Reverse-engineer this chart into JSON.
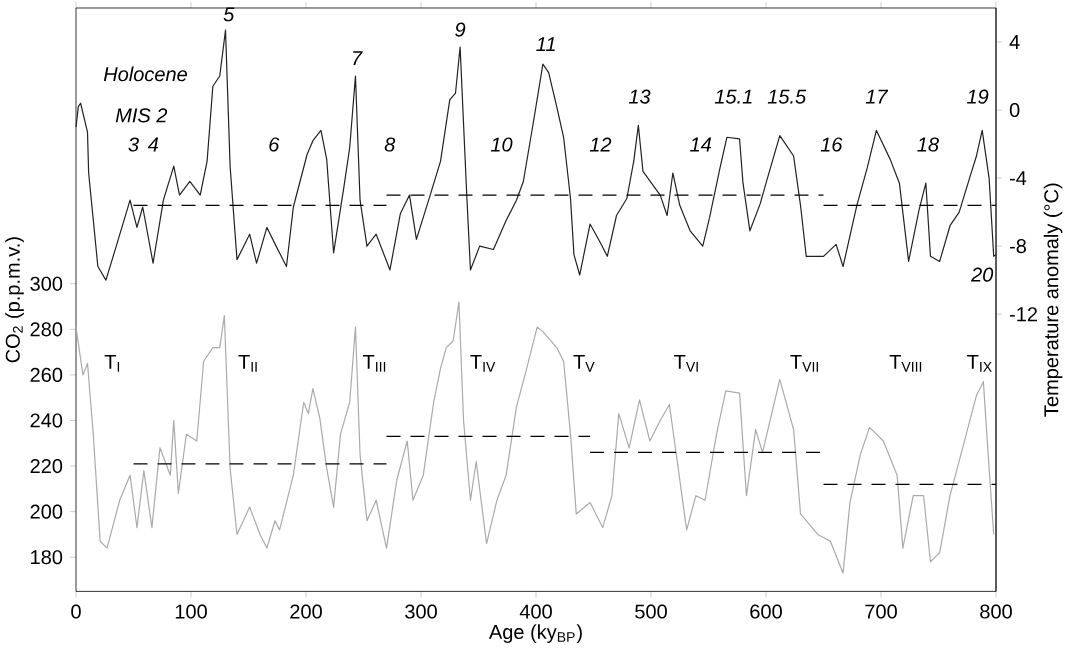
{
  "chart_data": {
    "type": "line",
    "xlabel": "Age (ky$_{BP}$)",
    "ylabel": "CO$_{2}$ (p.p.m.v.)",
    "y2label": "Temperature anomaly (°C)",
    "xlim": [
      0,
      800
    ],
    "xticks": [
      0,
      100,
      200,
      300,
      400,
      500,
      600,
      700,
      800
    ],
    "ylim": [
      165,
      421
    ],
    "yticks": [
      180,
      200,
      220,
      240,
      260,
      280,
      300
    ],
    "y2lim": [
      -28.3,
      6
    ],
    "y2ticks": [
      -12,
      -8,
      -4,
      0,
      4
    ],
    "series": [
      {
        "axis": "y2",
        "color": "#222222",
        "x": [
          0,
          2,
          4,
          10,
          11,
          19,
          26,
          35,
          47,
          53,
          58,
          67,
          76,
          85,
          90,
          99,
          108,
          114,
          119,
          125,
          130,
          134,
          140,
          151,
          157,
          166,
          174,
          183,
          189,
          201,
          206,
          213,
          218,
          224,
          233,
          238,
          243,
          247,
          253,
          261,
          273,
          282,
          290,
          296,
          308,
          317,
          325,
          330,
          334,
          340,
          343,
          351,
          363,
          374,
          383,
          389,
          398,
          406,
          411,
          418,
          424,
          430,
          433,
          438,
          447,
          456,
          462,
          470,
          479,
          485,
          489,
          493,
          508,
          514,
          519,
          525,
          534,
          545,
          551,
          560,
          566,
          577,
          580,
          586,
          595,
          600,
          612,
          624,
          630,
          635,
          650,
          661,
          667,
          679,
          688,
          696,
          708,
          716,
          724,
          733,
          739,
          743,
          751,
          760,
          768,
          777,
          783,
          788,
          794,
          798,
          800
        ],
        "values": [
          -1,
          0.2,
          0.4,
          -1.3,
          -3.7,
          -9.2,
          -10,
          -8,
          -5.3,
          -6.9,
          -5.7,
          -9,
          -5.3,
          -3.3,
          -5,
          -4.2,
          -5,
          -3,
          1.4,
          2,
          4.7,
          -3.3,
          -8.8,
          -7.3,
          -9,
          -6.9,
          -8,
          -9.2,
          -5.7,
          -2.6,
          -1.8,
          -1.2,
          -2.9,
          -8.4,
          -4.5,
          -2.2,
          2,
          -5.3,
          -8,
          -7.3,
          -9.4,
          -6.1,
          -5,
          -7.6,
          -5,
          -3,
          0.6,
          1,
          3.7,
          -5.3,
          -9.4,
          -8,
          -8.2,
          -6.5,
          -5.3,
          -4.2,
          -0.6,
          2.7,
          2.2,
          0.2,
          -1.6,
          -5.2,
          -8.5,
          -9.7,
          -6.7,
          -7.8,
          -8.6,
          -6.2,
          -5.2,
          -3,
          -0.9,
          -3.6,
          -5,
          -6.2,
          -3.7,
          -5.6,
          -7.1,
          -8,
          -6.3,
          -3.4,
          -1.6,
          -1.7,
          -4.3,
          -7.1,
          -5.5,
          -4.3,
          -1.5,
          -2.7,
          -5.6,
          -8.6,
          -8.6,
          -7.9,
          -9.2,
          -5.6,
          -3.4,
          -1.2,
          -2.9,
          -4.3,
          -8.9,
          -5.9,
          -4.3,
          -8.6,
          -8.9,
          -6.8,
          -6,
          -4,
          -2.7,
          -1.2,
          -4,
          -8.6,
          -8.5
        ]
      },
      {
        "color": "#aaaaaa",
        "x": [
          0,
          6,
          10,
          15,
          21,
          27,
          38,
          47,
          53,
          59,
          66,
          73,
          82,
          85,
          89,
          96,
          105,
          111,
          119,
          125,
          129,
          134,
          140,
          151,
          160,
          166,
          173,
          177,
          189,
          198,
          202,
          206,
          212,
          218,
          224,
          230,
          238,
          243,
          247,
          253,
          261,
          270,
          279,
          288,
          293,
          302,
          311,
          317,
          322,
          328,
          333,
          337,
          343,
          348,
          357,
          366,
          374,
          383,
          392,
          401,
          406,
          418,
          424,
          430,
          435,
          447,
          458,
          466,
          472,
          481,
          490,
          499,
          508,
          516,
          531,
          539,
          547,
          557,
          565,
          577,
          583,
          591,
          597,
          612,
          624,
          630,
          645,
          656,
          667,
          673,
          682,
          690,
          702,
          714,
          719,
          728,
          737,
          743,
          751,
          760,
          771,
          783,
          789,
          794,
          798
        ],
        "values": [
          281,
          260,
          265,
          234,
          187,
          184,
          205,
          216,
          193,
          218,
          193,
          228,
          216,
          240,
          208,
          234,
          231,
          266,
          272,
          272,
          286,
          219,
          190,
          202,
          190,
          184,
          196,
          192,
          216,
          248,
          243,
          254,
          241,
          219,
          202,
          234,
          248,
          281,
          225,
          196,
          205,
          184,
          214,
          231,
          205,
          216,
          248,
          263,
          272,
          275,
          292,
          240,
          205,
          222,
          186,
          205,
          216,
          246,
          263,
          281,
          279,
          272,
          266,
          234,
          199,
          204,
          193,
          207,
          243,
          228,
          249,
          231,
          240,
          247,
          192,
          207,
          205,
          234,
          253,
          252,
          207,
          236,
          226,
          258,
          236,
          199,
          190,
          187,
          173,
          204,
          225,
          237,
          231,
          216,
          184,
          207,
          207,
          178,
          182,
          207,
          228,
          251,
          257,
          219,
          190
        ]
      },
      {
        "axis": "y2",
        "color": "#000000",
        "line_style": "dashed",
        "x": [
          50,
          270
        ],
        "values": [
          -5.6,
          -5.6
        ]
      },
      {
        "axis": "y2",
        "color": "#000000",
        "line_style": "dashed",
        "x": [
          270,
          650
        ],
        "values": [
          -5.0,
          -5.0
        ]
      },
      {
        "axis": "y2",
        "color": "#000000",
        "line_style": "dashed",
        "x": [
          650,
          800
        ],
        "values": [
          -5.6,
          -5.6
        ]
      },
      {
        "color": "#000000",
        "line_style": "dashed",
        "x": [
          50,
          270
        ],
        "values": [
          221,
          221
        ]
      },
      {
        "color": "#000000",
        "line_style": "dashed",
        "x": [
          270,
          447
        ],
        "values": [
          233,
          233
        ]
      },
      {
        "color": "#000000",
        "line_style": "dashed",
        "x": [
          447,
          650
        ],
        "values": [
          226,
          226
        ]
      },
      {
        "color": "#000000",
        "line_style": "dashed",
        "x": [
          650,
          800
        ],
        "values": [
          212,
          212
        ]
      }
    ],
    "annotations": [
      "Holocene",
      "MIS 2",
      "3",
      "4",
      "5",
      "6",
      "7",
      "8",
      "9",
      "10",
      "11",
      "12",
      "13",
      "14",
      "15.1",
      "15.5",
      "16",
      "17",
      "18",
      "19",
      "20",
      "T$_{I}$",
      "T$_{II}$",
      "T$_{III}$",
      "T$_{IV}$",
      "T$_{V}$",
      "T$_{VI}$",
      "T$_{VII}$",
      "T$_{VIII}$",
      "T$_{IX}$"
    ]
  }
}
